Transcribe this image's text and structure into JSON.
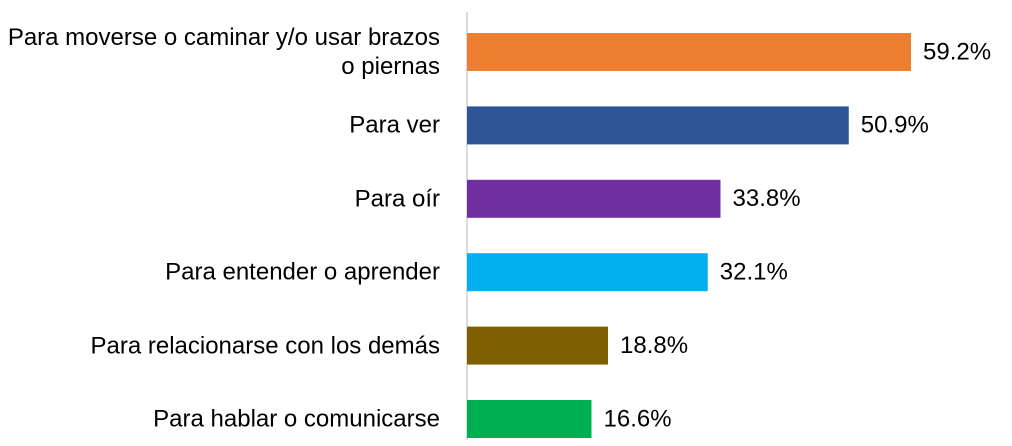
{
  "chart_data": {
    "type": "bar",
    "orientation": "horizontal",
    "categories": [
      "Para moverse o caminar y/o usar brazos o piernas",
      "Para ver",
      "Para oír",
      "Para entender o aprender",
      "Para relacionarse con los demás",
      "Para hablar o comunicarse"
    ],
    "values": [
      59.2,
      50.9,
      33.8,
      32.1,
      18.8,
      16.6
    ],
    "value_labels": [
      "59.2%",
      "50.9%",
      "33.8%",
      "32.1%",
      "18.8%",
      "16.6%"
    ],
    "colors": [
      "#ED7D31",
      "#2F5597",
      "#7030A0",
      "#00B0F0",
      "#7F6000",
      "#00B050"
    ]
  }
}
